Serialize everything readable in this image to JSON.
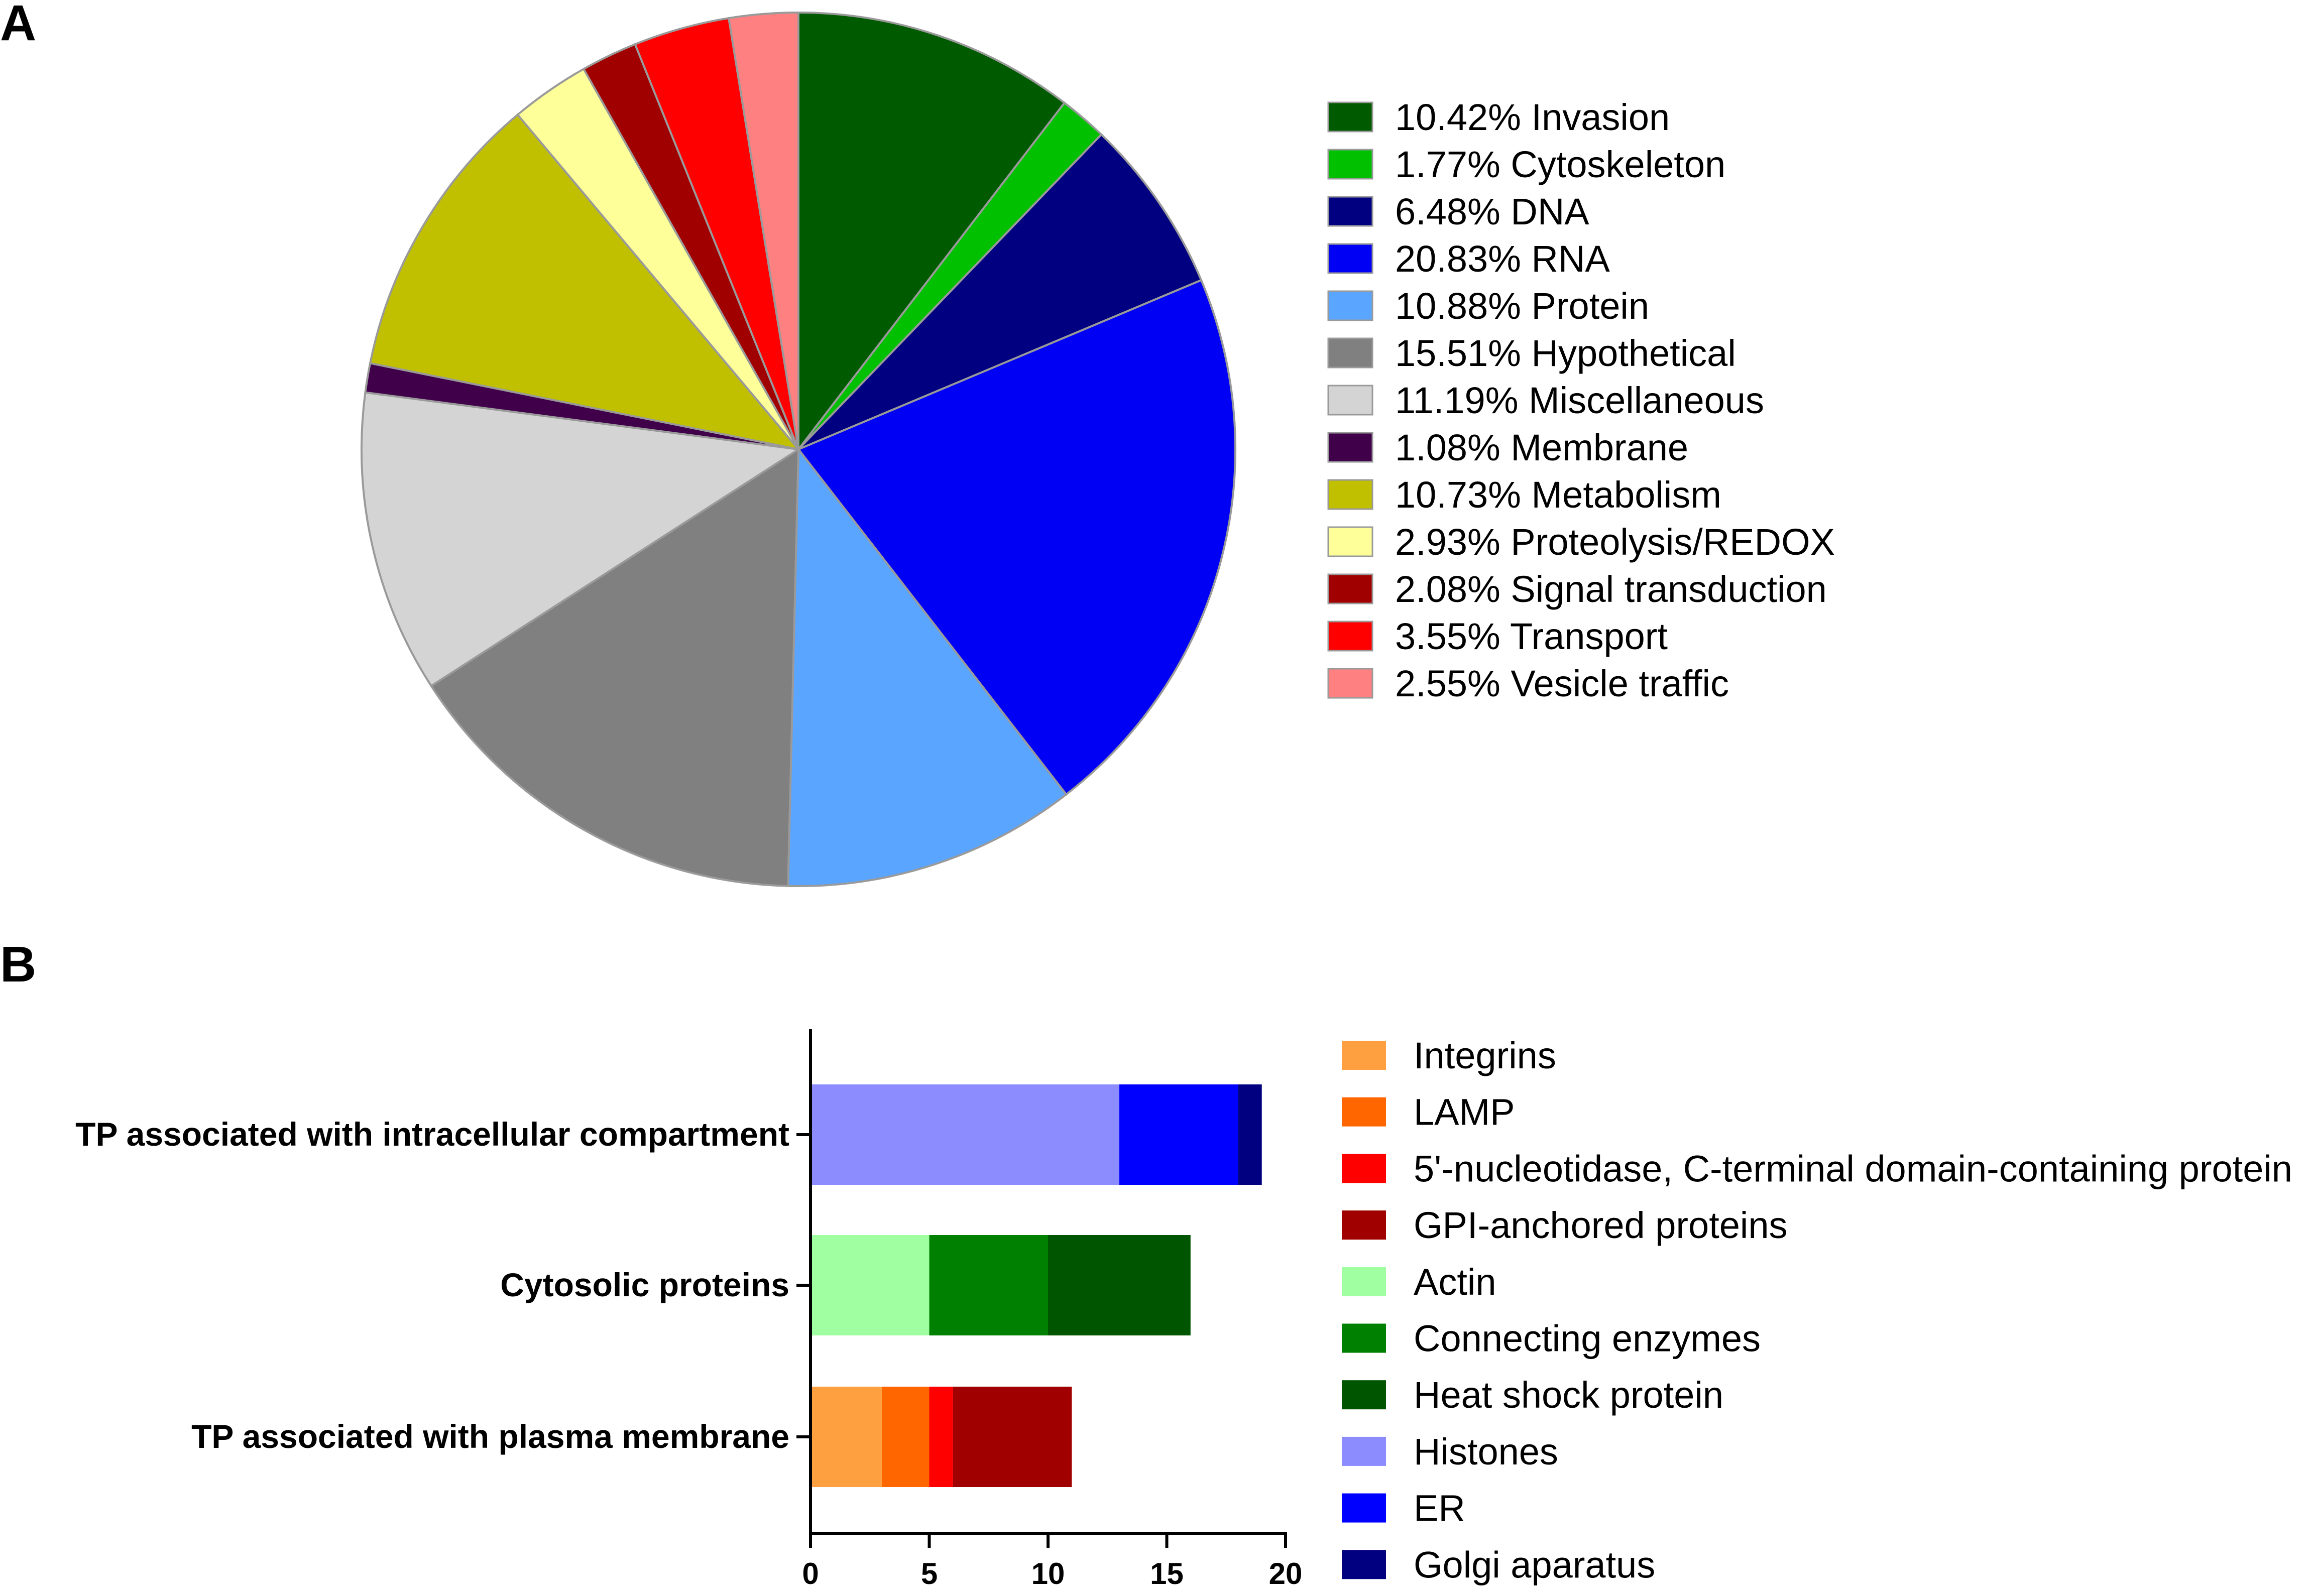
{
  "panels": {
    "a_label": "A",
    "b_label": "B"
  },
  "chart_data": [
    {
      "type": "pie",
      "start_angle_deg": 0,
      "direction": "clockwise",
      "legend_position": "right",
      "slices": [
        {
          "label": "Invasion",
          "pct_text": "10.42%",
          "value": 10.42,
          "color": "#005a00"
        },
        {
          "label": "Cytoskeleton",
          "pct_text": "1.77%",
          "value": 1.77,
          "color": "#00c000"
        },
        {
          "label": "DNA",
          "pct_text": "6.48%",
          "value": 6.48,
          "color": "#000080"
        },
        {
          "label": "RNA",
          "pct_text": "20.83%",
          "value": 20.83,
          "color": "#0000f5"
        },
        {
          "label": "Protein",
          "pct_text": "10.88%",
          "value": 10.88,
          "color": "#5aa5ff"
        },
        {
          "label": "Hypothetical",
          "pct_text": "15.51%",
          "value": 15.51,
          "color": "#808080"
        },
        {
          "label": "Miscellaneous",
          "pct_text": "11.19%",
          "value": 11.19,
          "color": "#d4d4d4"
        },
        {
          "label": "Membrane",
          "pct_text": "1.08%",
          "value": 1.08,
          "color": "#40004a"
        },
        {
          "label": "Metabolism",
          "pct_text": "10.73%",
          "value": 10.73,
          "color": "#c0c000"
        },
        {
          "label": "Proteolysis/REDOX",
          "pct_text": "2.93%",
          "value": 2.93,
          "color": "#ffff99"
        },
        {
          "label": "Signal transduction",
          "pct_text": "2.08%",
          "value": 2.08,
          "color": "#a00000"
        },
        {
          "label": "Transport",
          "pct_text": "3.55%",
          "value": 3.55,
          "color": "#ff0000"
        },
        {
          "label": "Vesicle traffic",
          "pct_text": "2.55%",
          "value": 2.55,
          "color": "#ff8080"
        }
      ]
    },
    {
      "type": "bar",
      "orientation": "horizontal",
      "stacked": true,
      "categories": [
        "TP associated with intracellular compartment",
        "Cytosolic proteins",
        "TP associated with plasma membrane"
      ],
      "xlim": [
        0,
        20
      ],
      "xticks": [
        0,
        5,
        10,
        15,
        20
      ],
      "legend_position": "right",
      "series": [
        {
          "name": "Integrins",
          "color": "#ffa040",
          "values": [
            0,
            0,
            3
          ]
        },
        {
          "name": "LAMP",
          "color": "#ff6600",
          "values": [
            0,
            0,
            2
          ]
        },
        {
          "name": "5'-nucleotidase, C-terminal domain-containing protein",
          "color": "#ff0000",
          "values": [
            0,
            0,
            1
          ]
        },
        {
          "name": "GPI-anchored proteins",
          "color": "#a00000",
          "values": [
            0,
            0,
            5
          ]
        },
        {
          "name": "Actin",
          "color": "#a0ffa0",
          "values": [
            0,
            5,
            0
          ]
        },
        {
          "name": "Connecting enzymes",
          "color": "#008000",
          "values": [
            0,
            5,
            0
          ]
        },
        {
          "name": "Heat shock protein",
          "color": "#005500",
          "values": [
            0,
            6,
            0
          ]
        },
        {
          "name": "Histones",
          "color": "#8c8cff",
          "values": [
            13,
            0,
            0
          ]
        },
        {
          "name": "ER",
          "color": "#0000ff",
          "values": [
            5,
            0,
            0
          ]
        },
        {
          "name": "Golgi aparatus",
          "color": "#000080",
          "values": [
            1,
            0,
            0
          ]
        }
      ]
    }
  ]
}
